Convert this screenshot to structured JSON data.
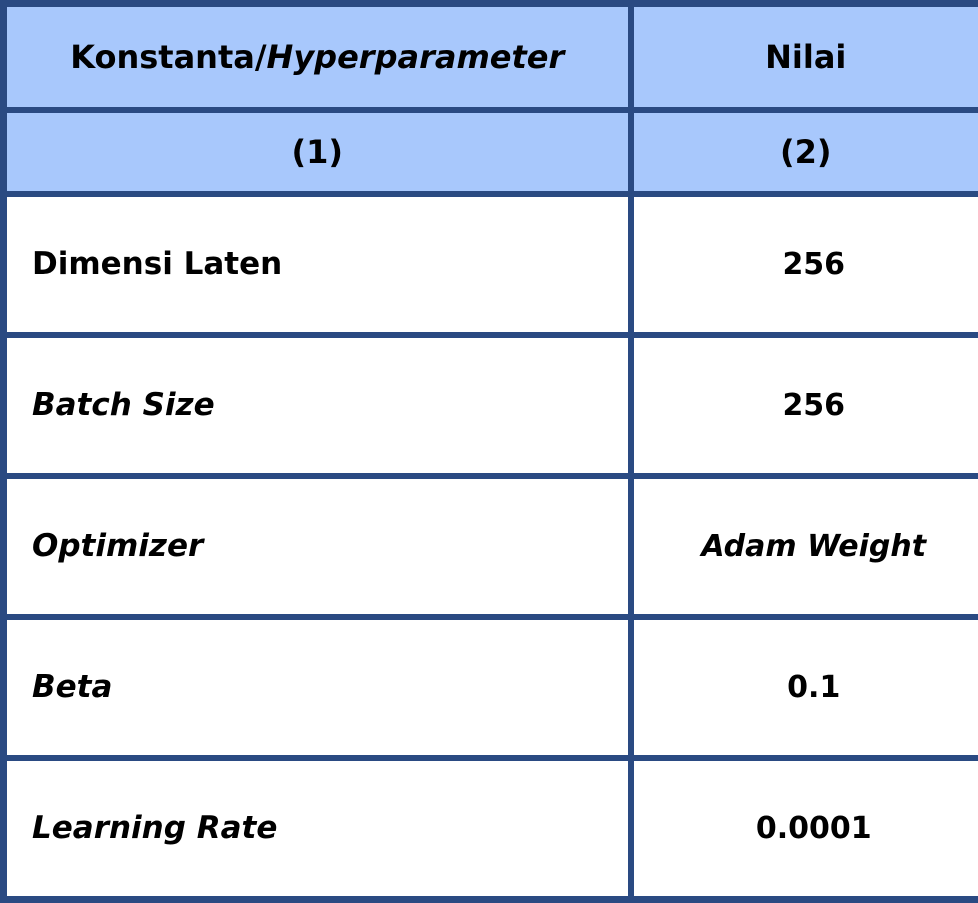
{
  "header": {
    "col1_prefix": "Konstanta/",
    "col1_italic": "Hyperparameter",
    "col2": "Nilai"
  },
  "column_numbers": [
    "(1)",
    "(2)"
  ],
  "rows": [
    {
      "label": "Dimensi Laten",
      "label_italic": false,
      "value": "256",
      "value_italic": false
    },
    {
      "label": "Batch Size",
      "label_italic": true,
      "value": "256",
      "value_italic": false
    },
    {
      "label": "Optimizer",
      "label_italic": true,
      "value": "Adam Weight",
      "value_italic": true
    },
    {
      "label": "Beta",
      "label_italic": true,
      "value": "0.1",
      "value_italic": false
    },
    {
      "label": "Learning Rate",
      "label_italic": true,
      "value": "0.0001",
      "value_italic": false
    }
  ],
  "colors": {
    "border": "#2a4a82",
    "header_bg": "#a8c8fc",
    "body_bg": "#ffffff",
    "text": "#000000"
  }
}
